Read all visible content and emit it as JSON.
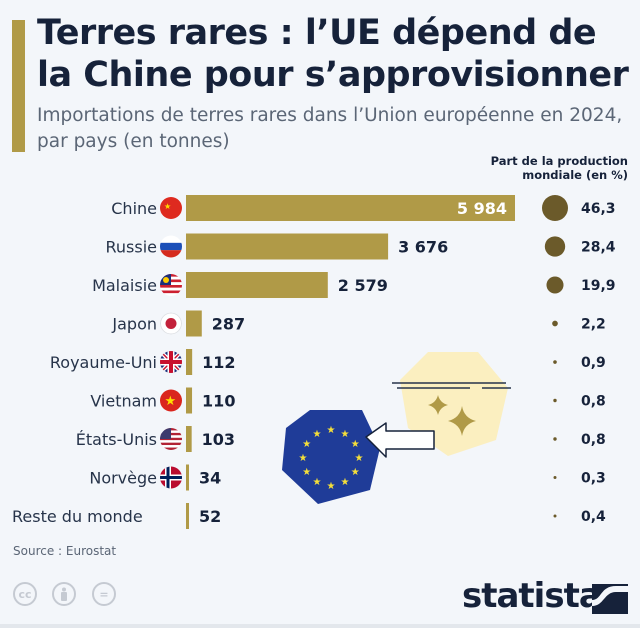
{
  "header": {
    "title": "Terres rares : l’UE dépend de la Chine pour s’approvisionner",
    "subtitle": "Importations de terres rares dans l’Union européenne en 2024, par pays (en tonnes)"
  },
  "legend": {
    "share_header": "Part de la production mondiale (en %)"
  },
  "colors": {
    "bar": "#b09a47",
    "bubble": "#6b5a2a",
    "text_dark": "#16223a",
    "eu_blue": "#1f3c98",
    "eu_star": "#f5df3a",
    "light_badge": "#fbefc0"
  },
  "chart_data": {
    "type": "bar",
    "orientation": "horizontal",
    "title": "Terres rares : l’UE dépend de la Chine pour s’approvisionner",
    "subtitle": "Importations de terres rares dans l’Union européenne en 2024, par pays (en tonnes)",
    "xlabel": "",
    "ylabel": "",
    "unit": "tonnes",
    "categories": [
      "Chine",
      "Russie",
      "Malaisie",
      "Japon",
      "Royaume-Uni",
      "Vietnam",
      "États-Unis",
      "Norvège",
      "Reste du monde"
    ],
    "flags": [
      "china-flag",
      "russia-flag",
      "malaysia-flag",
      "japan-flag",
      "uk-flag",
      "vietnam-flag",
      "usa-flag",
      "norway-flag",
      null
    ],
    "series": [
      {
        "name": "Importations (tonnes)",
        "values": [
          5984,
          3676,
          2579,
          287,
          112,
          110,
          103,
          34,
          52
        ],
        "labels": [
          "5 984",
          "3 676",
          "2 579",
          "287",
          "112",
          "110",
          "103",
          "34",
          "52"
        ]
      },
      {
        "name": "Part de la production mondiale (en %)",
        "values": [
          46.3,
          28.4,
          19.9,
          2.2,
          0.9,
          0.8,
          0.8,
          0.3,
          0.4
        ],
        "labels": [
          "46,3",
          "28,4",
          "19,9",
          "2,2",
          "0,9",
          "0,8",
          "0,8",
          "0,3",
          "0,4"
        ]
      }
    ],
    "xlim": [
      0,
      5984
    ],
    "grid": false,
    "legend": "top-right"
  },
  "footer": {
    "source": "Source : Eurostat",
    "brand": "statista",
    "license_icons": [
      "cc",
      "by",
      "nd"
    ],
    "cc_label": "cc",
    "nd_label": "="
  }
}
